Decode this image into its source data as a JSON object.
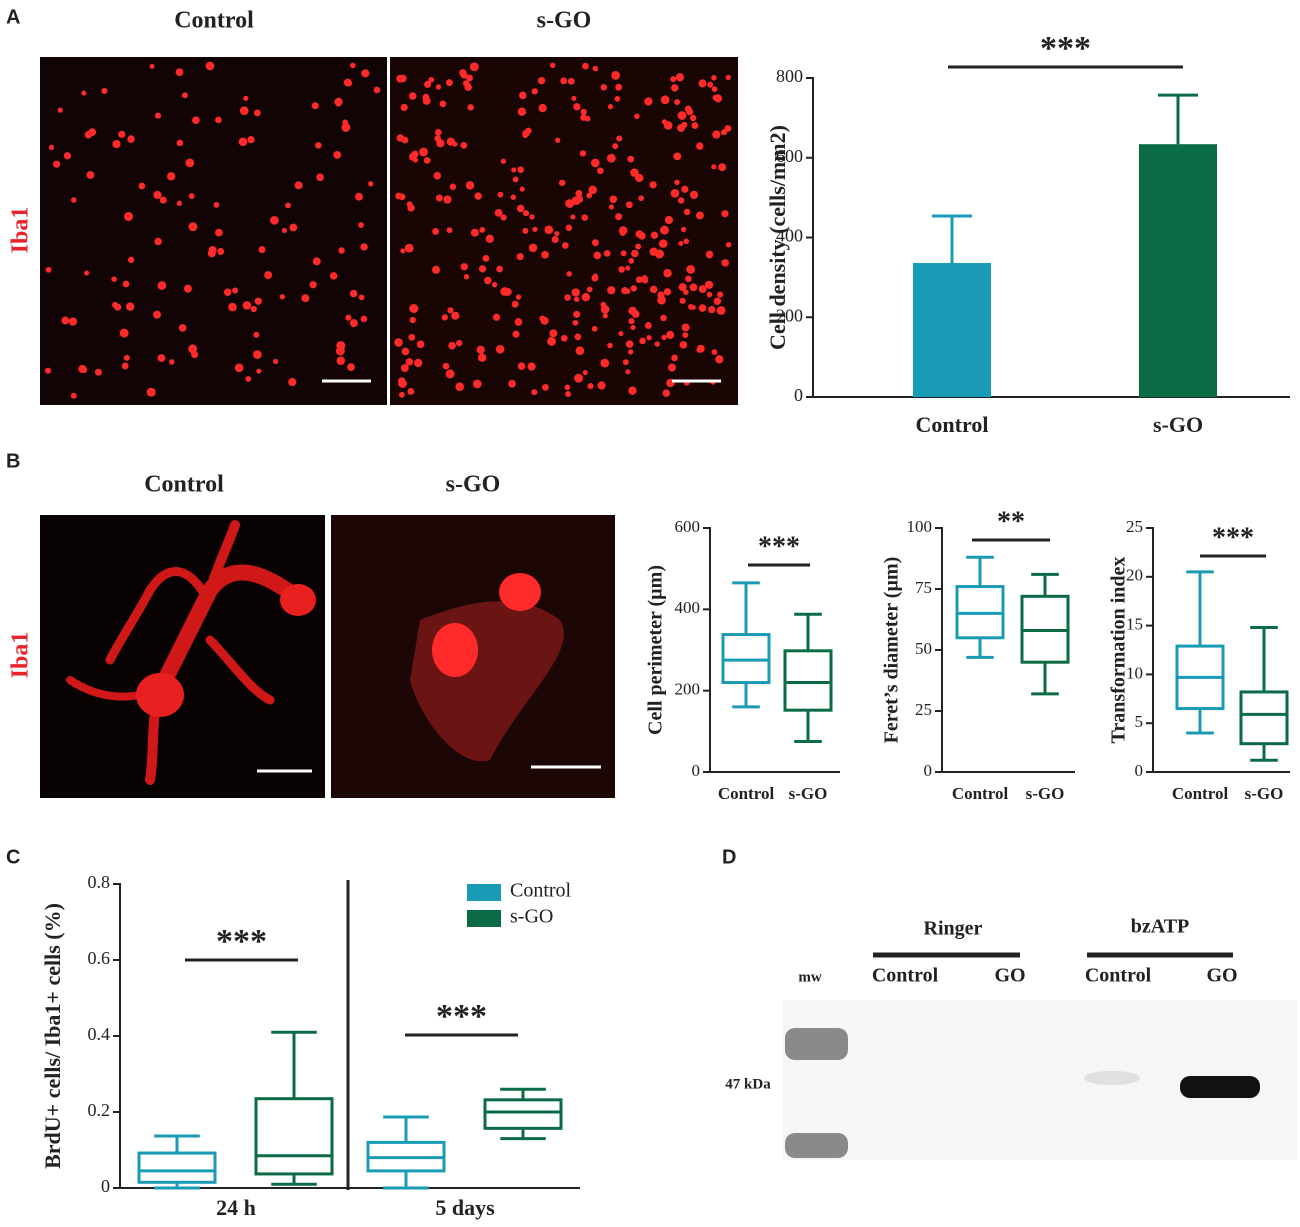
{
  "panel_labels": [
    "A",
    "B",
    "C",
    "D"
  ],
  "micrographs": {
    "A": {
      "columns": [
        "Control",
        "s-GO"
      ],
      "stain": "Iba1"
    },
    "B": {
      "columns": [
        "Control",
        "s-GO"
      ],
      "stain": "Iba1"
    }
  },
  "blot": {
    "ladder": "mw",
    "marker": "47 kDa",
    "groups": [
      {
        "label": "Ringer",
        "lanes": [
          "Control",
          "GO"
        ]
      },
      {
        "label": "bzATP",
        "lanes": [
          "Control",
          "GO"
        ]
      }
    ]
  },
  "chart_data": [
    {
      "type": "bar",
      "ylabel": "Cell density (cells/mm2)",
      "categories": [
        "Control",
        "s-GO"
      ],
      "values": [
        336,
        634
      ],
      "errors": [
        118,
        123
      ],
      "colors": [
        "#1a9bb5",
        "#0a6b45"
      ],
      "ylim": [
        0,
        800
      ],
      "yticks": [
        0,
        200,
        400,
        600,
        800
      ],
      "annotation": "***"
    },
    {
      "type": "box",
      "ylabel": "Cell perimeter (µm)",
      "categories": [
        "Control",
        "s-GO"
      ],
      "colors": [
        "#1a9bb5",
        "#0a6b45"
      ],
      "boxes": [
        {
          "min": 160,
          "q1": 220,
          "median": 275,
          "q3": 338,
          "max": 465
        },
        {
          "min": 75,
          "q1": 152,
          "median": 220,
          "q3": 298,
          "max": 388
        }
      ],
      "ylim": [
        0,
        600
      ],
      "yticks": [
        0,
        200,
        400,
        600
      ],
      "annotation": "***"
    },
    {
      "type": "box",
      "ylabel": "Feret’s diameter (µm)",
      "categories": [
        "Control",
        "s-GO"
      ],
      "colors": [
        "#1a9bb5",
        "#0a6b45"
      ],
      "boxes": [
        {
          "min": 47,
          "q1": 55,
          "median": 65,
          "q3": 76,
          "max": 88
        },
        {
          "min": 32,
          "q1": 45,
          "median": 58,
          "q3": 72,
          "max": 81
        }
      ],
      "ylim": [
        0,
        100
      ],
      "yticks": [
        0,
        25,
        50,
        75,
        100
      ],
      "annotation": "**"
    },
    {
      "type": "box",
      "ylabel": "Transformation index",
      "categories": [
        "Control",
        "s-GO"
      ],
      "colors": [
        "#1a9bb5",
        "#0a6b45"
      ],
      "boxes": [
        {
          "min": 4,
          "q1": 6.5,
          "median": 9.7,
          "q3": 12.9,
          "max": 20.5
        },
        {
          "min": 1.2,
          "q1": 2.9,
          "median": 5.9,
          "q3": 8.2,
          "max": 14.8
        }
      ],
      "ylim": [
        0,
        25
      ],
      "yticks": [
        0,
        5,
        10,
        15,
        20,
        25
      ],
      "annotation": "***"
    },
    {
      "type": "grouped-box",
      "ylabel": "BrdU+ cells/ Iba1+ cells (%)",
      "categories": [
        "24 h",
        "5 days"
      ],
      "legend": "upper right",
      "series": [
        {
          "name": "Control",
          "color": "#1a9bb5",
          "boxes": [
            {
              "min": 0,
              "q1": 0.015,
              "median": 0.045,
              "q3": 0.092,
              "max": 0.137
            },
            {
              "min": 0,
              "q1": 0.045,
              "median": 0.08,
              "q3": 0.12,
              "max": 0.187
            }
          ]
        },
        {
          "name": "s-GO",
          "color": "#0a6b45",
          "boxes": [
            {
              "min": 0.01,
              "q1": 0.037,
              "median": 0.085,
              "q3": 0.235,
              "max": 0.41
            },
            {
              "min": 0.13,
              "q1": 0.157,
              "median": 0.2,
              "q3": 0.232,
              "max": 0.26
            }
          ]
        }
      ],
      "ylim": [
        0,
        0.8
      ],
      "yticks": [
        0,
        0.2,
        0.4,
        0.6,
        0.8
      ],
      "annotations": [
        "***",
        "***"
      ]
    }
  ]
}
